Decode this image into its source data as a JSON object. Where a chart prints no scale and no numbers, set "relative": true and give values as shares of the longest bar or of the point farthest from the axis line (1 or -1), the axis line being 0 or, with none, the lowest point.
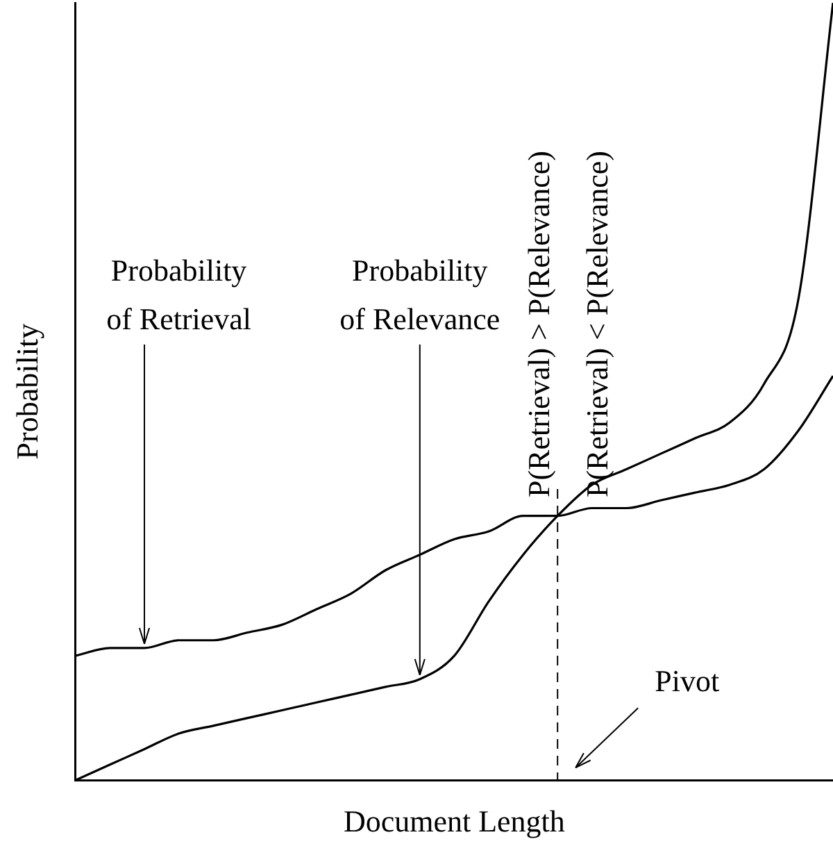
{
  "chart_data": {
    "type": "line",
    "relative": true,
    "xlabel": "Document Length",
    "ylabel": "Probability",
    "legend": false,
    "categories": [
      null,
      null,
      null,
      null,
      null,
      null,
      null,
      null,
      null,
      null,
      null,
      null,
      null,
      null,
      null,
      null,
      null,
      null,
      null,
      null,
      null,
      null,
      null
    ],
    "series": [
      {
        "name": "Probability of Retrieval",
        "color": "#000000",
        "values": [
          0.16,
          0.17,
          0.17,
          0.18,
          0.18,
          0.19,
          0.2,
          0.22,
          0.24,
          0.27,
          0.29,
          0.31,
          0.32,
          0.34,
          0.34,
          0.35,
          0.35,
          0.36,
          0.37,
          0.38,
          0.4,
          0.45,
          0.52
        ]
      },
      {
        "color": "#000000",
        "values": [
          0,
          0.02,
          0.04,
          0.06,
          0.07,
          0.08,
          0.09,
          0.1,
          0.11,
          0.12,
          0.13,
          0.16,
          0.23,
          0.29,
          0.34,
          0.38,
          0.4,
          0.42,
          0.44,
          0.46,
          0.51,
          0.62,
          1.0
        ]
      }
    ],
    "annotations": [
      "P(Retrieval) > P(Relevance)",
      "P(Retrieval) < P(Relevance)",
      "Pivot",
      "Probability of Relevance"
    ]
  }
}
